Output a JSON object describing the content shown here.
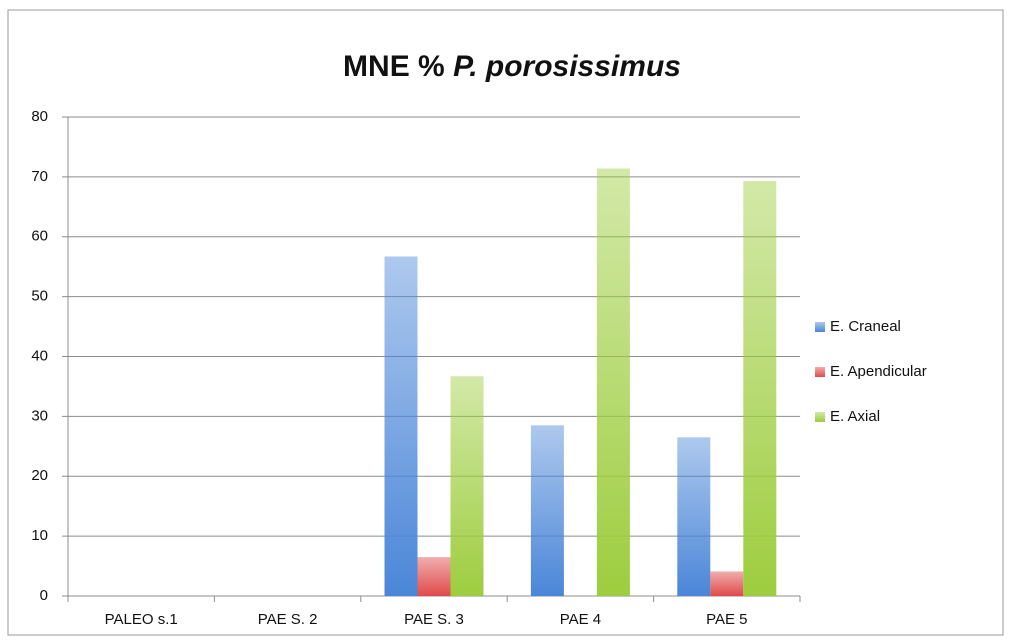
{
  "chart_data": {
    "type": "bar",
    "title": "MNE %",
    "title_species": "P. porosissimus",
    "categories": [
      "PALEO s.1",
      "PAE S. 2",
      "PAE S. 3",
      "PAE 4",
      "PAE 5"
    ],
    "series": [
      {
        "name": "E. Craneal",
        "color": "#4a86d8",
        "values": [
          0,
          0,
          56.7,
          28.5,
          26.5
        ]
      },
      {
        "name": "E. Apendicular",
        "color": "#e04a4a",
        "values": [
          0,
          0,
          6.5,
          0,
          4.1
        ]
      },
      {
        "name": "E. Axial",
        "color": "#9dcd3e",
        "values": [
          0,
          0,
          36.7,
          71.4,
          69.3
        ]
      }
    ],
    "ylim": [
      0,
      80
    ],
    "yticks": [
      0,
      10,
      20,
      30,
      40,
      50,
      60,
      70,
      80
    ],
    "grid": true,
    "legend": "right"
  }
}
